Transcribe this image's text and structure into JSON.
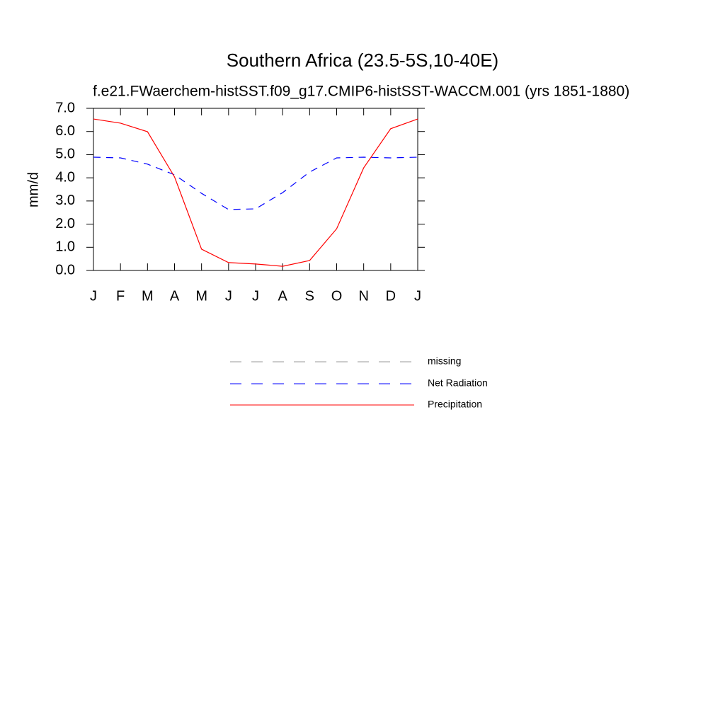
{
  "chart_data": {
    "type": "line",
    "title": "Southern Africa (23.5-5S,10-40E)",
    "subtitle": "f.e21.FWaerchem-histSST.f09_g17.CMIP6-histSST-WACCM.001 (yrs 1851-1880)",
    "y_label": "mm/d",
    "categories": [
      "J",
      "F",
      "M",
      "A",
      "M",
      "J",
      "J",
      "A",
      "S",
      "O",
      "N",
      "D",
      "J"
    ],
    "series": [
      {
        "name": "missing",
        "color": "#999999",
        "line_style": "dashed",
        "values": [
          null,
          null,
          null,
          null,
          null,
          null,
          null,
          null,
          null,
          null,
          null,
          null,
          null
        ]
      },
      {
        "name": "Net Radiation",
        "color": "#0000ff",
        "line_style": "dashed",
        "values": [
          4.89,
          4.86,
          4.59,
          4.13,
          3.33,
          2.63,
          2.66,
          3.36,
          4.25,
          4.86,
          4.89,
          4.86,
          4.89
        ]
      },
      {
        "name": "Precipitation",
        "color": "#ff0000",
        "line_style": "solid",
        "values": [
          6.54,
          6.36,
          5.99,
          4.04,
          0.92,
          0.34,
          0.28,
          0.18,
          0.43,
          1.8,
          4.43,
          6.12,
          6.54
        ]
      }
    ],
    "ylim": [
      0,
      7
    ],
    "yticks": [
      {
        "value": 0,
        "label": "0.0"
      },
      {
        "value": 1,
        "label": "1.0"
      },
      {
        "value": 2,
        "label": "2.0"
      },
      {
        "value": 3,
        "label": "3.0"
      },
      {
        "value": 4,
        "label": "4.0"
      },
      {
        "value": 5,
        "label": "5.0"
      },
      {
        "value": 6,
        "label": "6.0"
      },
      {
        "value": 7,
        "label": "7.0"
      }
    ],
    "grid": false,
    "legend_position": "bottom"
  }
}
